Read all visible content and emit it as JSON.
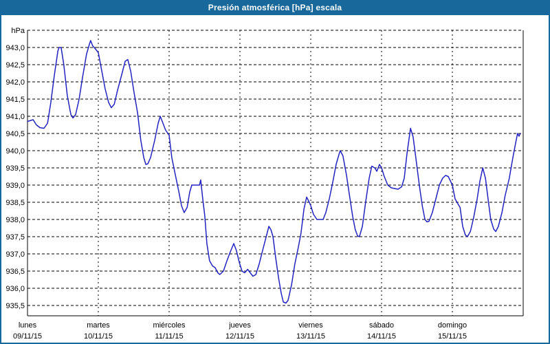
{
  "window": {
    "title": "Presión atmosférica [hPa] escala",
    "titlebar_color": "#19689b",
    "background_color": "#ffffff"
  },
  "chart_data": {
    "type": "line",
    "title": "Presión atmosférica [hPa] escala",
    "unit_label": "hPa",
    "grid": "dashed",
    "legend": "none",
    "line_color": "#2222c2",
    "grid_color": "#000000",
    "text_color": "#000000",
    "ylim": [
      935.2,
      943.5
    ],
    "gridline_step": 0.5,
    "xlim_hours": [
      0,
      168
    ],
    "y_ticks": [
      {
        "value": 943.0,
        "label": "943,0"
      },
      {
        "value": 942.5,
        "label": "942,5"
      },
      {
        "value": 942.0,
        "label": "942,0"
      },
      {
        "value": 941.5,
        "label": "941,5"
      },
      {
        "value": 941.0,
        "label": "941,0"
      },
      {
        "value": 940.5,
        "label": "940,5"
      },
      {
        "value": 940.0,
        "label": "940,0"
      },
      {
        "value": 939.5,
        "label": "939,5"
      },
      {
        "value": 939.0,
        "label": "939,0"
      },
      {
        "value": 938.5,
        "label": "938,5"
      },
      {
        "value": 938.0,
        "label": "938,0"
      },
      {
        "value": 937.5,
        "label": "937,5"
      },
      {
        "value": 937.0,
        "label": "937,0"
      },
      {
        "value": 936.5,
        "label": "936,5"
      },
      {
        "value": 936.0,
        "label": "936,0"
      },
      {
        "value": 935.5,
        "label": "935,5"
      }
    ],
    "x_days": [
      {
        "name": "lunes",
        "date": "09/11/15"
      },
      {
        "name": "martes",
        "date": "10/11/15"
      },
      {
        "name": "miércoles",
        "date": "11/11/15"
      },
      {
        "name": "jueves",
        "date": "12/11/15"
      },
      {
        "name": "viernes",
        "date": "13/11/15"
      },
      {
        "name": "sábado",
        "date": "14/11/15"
      },
      {
        "name": "domingo",
        "date": "15/11/15"
      }
    ],
    "series": [
      {
        "color": "#2222c2",
        "points": [
          [
            0,
            940.85
          ],
          [
            1.9,
            940.9
          ],
          [
            3,
            940.75
          ],
          [
            4.2,
            940.67
          ],
          [
            5.6,
            940.65
          ],
          [
            6.8,
            940.8
          ],
          [
            7.9,
            941.4
          ],
          [
            9.1,
            942.2
          ],
          [
            10.3,
            942.9
          ],
          [
            10.7,
            943.0
          ],
          [
            11.4,
            943.0
          ],
          [
            12.3,
            942.5
          ],
          [
            13.5,
            941.6
          ],
          [
            14.7,
            941.05
          ],
          [
            15.4,
            940.95
          ],
          [
            16.3,
            941.05
          ],
          [
            17.5,
            941.5
          ],
          [
            18.6,
            942.1
          ],
          [
            20,
            942.8
          ],
          [
            21,
            943.1
          ],
          [
            21.4,
            943.2
          ],
          [
            22.1,
            943.05
          ],
          [
            23.1,
            942.95
          ],
          [
            24,
            942.85
          ],
          [
            25.2,
            942.3
          ],
          [
            26.3,
            941.8
          ],
          [
            27.5,
            941.4
          ],
          [
            28.4,
            941.25
          ],
          [
            29.4,
            941.35
          ],
          [
            30.5,
            941.75
          ],
          [
            31.9,
            942.2
          ],
          [
            33.1,
            942.6
          ],
          [
            34,
            942.65
          ],
          [
            35,
            942.3
          ],
          [
            36.1,
            941.7
          ],
          [
            37.3,
            941.1
          ],
          [
            38.4,
            940.3
          ],
          [
            39.4,
            939.8
          ],
          [
            40.1,
            939.6
          ],
          [
            40.8,
            939.62
          ],
          [
            41.7,
            939.8
          ],
          [
            43.1,
            940.3
          ],
          [
            44.3,
            940.8
          ],
          [
            45,
            941.0
          ],
          [
            45.9,
            940.8
          ],
          [
            46.8,
            940.6
          ],
          [
            48,
            940.45
          ],
          [
            48.9,
            939.8
          ],
          [
            50.1,
            939.3
          ],
          [
            51.3,
            938.8
          ],
          [
            52.2,
            938.4
          ],
          [
            53.1,
            938.2
          ],
          [
            54.1,
            938.35
          ],
          [
            55,
            938.8
          ],
          [
            55.7,
            939.0
          ],
          [
            57.1,
            939.0
          ],
          [
            58.3,
            939.0
          ],
          [
            58.7,
            939.15
          ],
          [
            59.4,
            938.6
          ],
          [
            60.1,
            938.1
          ],
          [
            60.8,
            937.3
          ],
          [
            61.7,
            936.8
          ],
          [
            62.7,
            936.65
          ],
          [
            63.6,
            936.6
          ],
          [
            64.5,
            936.45
          ],
          [
            65.2,
            936.4
          ],
          [
            66.4,
            936.5
          ],
          [
            67.6,
            936.8
          ],
          [
            68.7,
            937.05
          ],
          [
            69.9,
            937.3
          ],
          [
            70.8,
            937.1
          ],
          [
            71.8,
            936.75
          ],
          [
            72.7,
            936.5
          ],
          [
            73.6,
            936.45
          ],
          [
            74.6,
            936.55
          ],
          [
            75.5,
            936.45
          ],
          [
            76.4,
            936.35
          ],
          [
            77.4,
            936.4
          ],
          [
            78.5,
            936.7
          ],
          [
            79.7,
            937.1
          ],
          [
            80.9,
            937.5
          ],
          [
            81.8,
            937.8
          ],
          [
            82.5,
            937.7
          ],
          [
            83.2,
            937.5
          ],
          [
            84.1,
            936.9
          ],
          [
            85.1,
            936.3
          ],
          [
            86,
            935.85
          ],
          [
            86.7,
            935.6
          ],
          [
            87.6,
            935.57
          ],
          [
            88.3,
            935.65
          ],
          [
            89.5,
            936.1
          ],
          [
            90.6,
            936.7
          ],
          [
            91.8,
            937.2
          ],
          [
            92.7,
            937.6
          ],
          [
            93.7,
            938.3
          ],
          [
            94.6,
            938.65
          ],
          [
            95.5,
            938.5
          ],
          [
            96,
            938.4
          ],
          [
            96.9,
            938.15
          ],
          [
            98.1,
            938.0
          ],
          [
            99.3,
            938.0
          ],
          [
            100.2,
            938.0
          ],
          [
            101.1,
            938.2
          ],
          [
            102.3,
            938.6
          ],
          [
            103.5,
            939.1
          ],
          [
            104.6,
            939.6
          ],
          [
            105.6,
            939.9
          ],
          [
            106,
            940.0
          ],
          [
            106.9,
            939.85
          ],
          [
            108.1,
            939.3
          ],
          [
            109.3,
            938.6
          ],
          [
            110.2,
            938.1
          ],
          [
            111.1,
            937.7
          ],
          [
            111.9,
            937.52
          ],
          [
            112.5,
            937.5
          ],
          [
            113.5,
            937.8
          ],
          [
            114.6,
            938.5
          ],
          [
            115.8,
            939.2
          ],
          [
            116.7,
            939.55
          ],
          [
            117.7,
            939.5
          ],
          [
            118.4,
            939.4
          ],
          [
            119.3,
            939.6
          ],
          [
            120,
            939.5
          ],
          [
            120.9,
            939.25
          ],
          [
            122.1,
            939.0
          ],
          [
            123.3,
            938.92
          ],
          [
            124.4,
            938.9
          ],
          [
            125.6,
            938.88
          ],
          [
            126.8,
            938.95
          ],
          [
            127.7,
            939.2
          ],
          [
            128.6,
            939.9
          ],
          [
            129.8,
            940.65
          ],
          [
            130.7,
            940.4
          ],
          [
            131.6,
            939.8
          ],
          [
            132.8,
            939.0
          ],
          [
            133.8,
            938.4
          ],
          [
            134.7,
            938.0
          ],
          [
            135.4,
            937.93
          ],
          [
            136.1,
            937.95
          ],
          [
            137.2,
            938.2
          ],
          [
            138.4,
            938.6
          ],
          [
            139.6,
            939.0
          ],
          [
            140.7,
            939.2
          ],
          [
            141.7,
            939.28
          ],
          [
            142.6,
            939.25
          ],
          [
            144,
            939.0
          ],
          [
            144.9,
            938.6
          ],
          [
            145.9,
            938.45
          ],
          [
            146.6,
            938.35
          ],
          [
            147.5,
            937.8
          ],
          [
            148.4,
            937.55
          ],
          [
            149.1,
            937.5
          ],
          [
            150.1,
            937.65
          ],
          [
            151.2,
            938.05
          ],
          [
            152.4,
            938.6
          ],
          [
            153.3,
            939.1
          ],
          [
            154.3,
            939.5
          ],
          [
            155.2,
            939.2
          ],
          [
            156.1,
            938.6
          ],
          [
            157,
            938.0
          ],
          [
            158,
            937.72
          ],
          [
            158.7,
            937.65
          ],
          [
            159.6,
            937.8
          ],
          [
            160.8,
            938.2
          ],
          [
            161.9,
            938.7
          ],
          [
            163.3,
            939.2
          ],
          [
            164.5,
            939.8
          ],
          [
            165.4,
            940.2
          ],
          [
            166.1,
            940.5
          ],
          [
            166.6,
            940.42
          ],
          [
            167,
            940.5
          ]
        ]
      }
    ]
  }
}
